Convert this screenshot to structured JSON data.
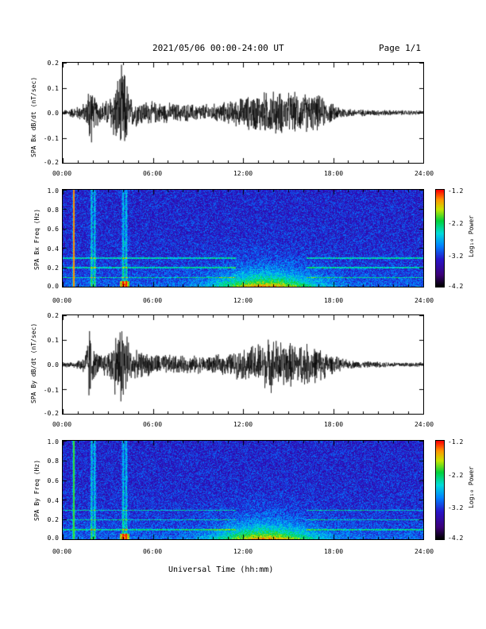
{
  "header": {
    "title": "2021/05/06  00:00-24:00 UT",
    "page": "Page 1/1"
  },
  "xlabel": "Universal Time (hh:mm)",
  "chart_data": [
    {
      "type": "line",
      "ylabel": "SPA Bx dB/dt (nT/sec)",
      "xlim": [
        "00:00",
        "24:00"
      ],
      "ylim": [
        -0.2,
        0.2
      ],
      "x_ticks": [
        "00:00",
        "06:00",
        "12:00",
        "18:00",
        "24:00"
      ],
      "y_ticks": [
        "-0.2",
        "-0.1",
        "0.0",
        "0.1",
        "0.2"
      ],
      "envelope_hours": [
        0,
        1,
        1.6,
        1.8,
        2,
        2.5,
        3,
        3.9,
        4.1,
        4.5,
        5,
        6,
        8,
        10,
        11,
        12,
        13,
        14,
        15,
        16,
        17,
        18,
        19,
        20,
        22,
        24
      ],
      "envelope_amplitude": [
        0.01,
        0.03,
        0.05,
        0.2,
        0.08,
        0.05,
        0.06,
        0.2,
        0.2,
        0.07,
        0.06,
        0.05,
        0.04,
        0.04,
        0.05,
        0.07,
        0.09,
        0.1,
        0.09,
        0.09,
        0.08,
        0.04,
        0.02,
        0.015,
        0.012,
        0.01
      ]
    },
    {
      "type": "heatmap",
      "ylabel": "SPA Bx Freq (Hz)",
      "xlim": [
        "00:00",
        "24:00"
      ],
      "ylim": [
        0.0,
        1.0
      ],
      "x_ticks": [
        "00:00",
        "06:00",
        "12:00",
        "18:00",
        "24:00"
      ],
      "y_ticks": [
        "0.0",
        "0.2",
        "0.4",
        "0.6",
        "0.8",
        "1.0"
      ],
      "colorbar": {
        "label": "Log₁₀ Power",
        "min": -4.2,
        "max": -1.2,
        "ticks": [
          "-1.2",
          "-2.2",
          "-3.2",
          "-4.2"
        ]
      },
      "bright_columns_hours": [
        0.7,
        1.9,
        2.1,
        4.0,
        4.2
      ],
      "harmonic_lines_hz": [
        0.1,
        0.2,
        0.3
      ]
    },
    {
      "type": "line",
      "ylabel": "SPA By dB/dt (nT/sec)",
      "xlim": [
        "00:00",
        "24:00"
      ],
      "ylim": [
        -0.2,
        0.2
      ],
      "x_ticks": [
        "00:00",
        "06:00",
        "12:00",
        "18:00",
        "24:00"
      ],
      "y_ticks": [
        "-0.2",
        "-0.1",
        "0.0",
        "0.1",
        "0.2"
      ],
      "envelope_hours": [
        0,
        1,
        1.5,
        1.8,
        2,
        2.5,
        3,
        3.9,
        4.1,
        4.6,
        5,
        6,
        8,
        10,
        11,
        12,
        13,
        14,
        15,
        16,
        17,
        18,
        19,
        20,
        22,
        24
      ],
      "envelope_amplitude": [
        0.01,
        0.02,
        0.05,
        0.2,
        0.07,
        0.05,
        0.06,
        0.2,
        0.2,
        0.06,
        0.06,
        0.05,
        0.04,
        0.04,
        0.05,
        0.07,
        0.1,
        0.12,
        0.1,
        0.1,
        0.08,
        0.04,
        0.02,
        0.015,
        0.012,
        0.01
      ]
    },
    {
      "type": "heatmap",
      "ylabel": "SPA By Freq (Hz)",
      "xlim": [
        "00:00",
        "24:00"
      ],
      "ylim": [
        0.0,
        1.0
      ],
      "x_ticks": [
        "00:00",
        "06:00",
        "12:00",
        "18:00",
        "24:00"
      ],
      "y_ticks": [
        "0.0",
        "0.2",
        "0.4",
        "0.6",
        "0.8",
        "1.0"
      ],
      "colorbar": {
        "label": "Log₁₀ Power",
        "min": -4.2,
        "max": -1.2,
        "ticks": [
          "-1.2",
          "-2.2",
          "-3.2",
          "-4.2"
        ]
      },
      "bright_columns_hours": [
        0.7,
        1.9,
        2.1,
        4.0,
        4.2
      ],
      "harmonic_lines_hz": [
        0.1,
        0.2,
        0.3
      ]
    }
  ]
}
